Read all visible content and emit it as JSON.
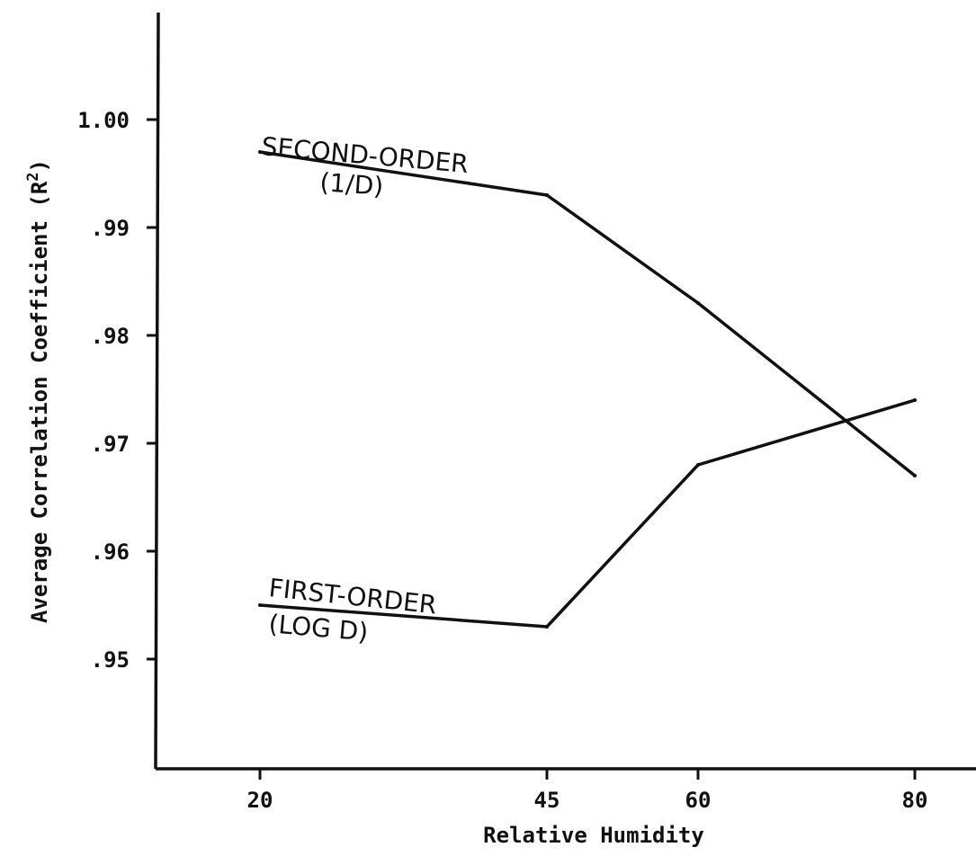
{
  "chart_data": {
    "type": "line",
    "xlabel": "Relative Humidity",
    "ylabel": "Average Correlation Coefficient (R",
    "ylabel_superscript": "2",
    "ylabel_close": ")",
    "x_ticks": [
      "20",
      "45",
      "60",
      "80"
    ],
    "y_ticks": [
      "1.00",
      ".99",
      ".98",
      ".97",
      ".96",
      ".95"
    ],
    "x_values": [
      20,
      45,
      60,
      80
    ],
    "ylim": [
      0.94,
      1.01
    ],
    "grid": false,
    "series": [
      {
        "name": "SECOND-ORDER",
        "name_line2": "(1/D)",
        "x": [
          20,
          45,
          60,
          80
        ],
        "values": [
          0.997,
          0.993,
          0.983,
          0.967
        ]
      },
      {
        "name": "FIRST-ORDER",
        "name_line2": "(LOG D)",
        "x": [
          20,
          45,
          60,
          80
        ],
        "values": [
          0.955,
          0.953,
          0.968,
          0.974
        ]
      }
    ]
  }
}
